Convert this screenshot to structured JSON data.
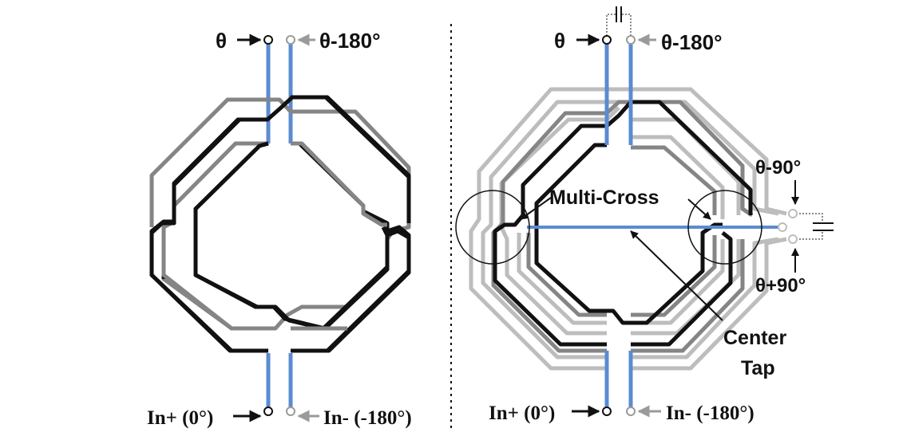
{
  "left": {
    "top_in_label": "θ",
    "top_out_label": "θ-180°",
    "bottom_in_label": "In+ (0°)",
    "bottom_out_label": "In- (-180°)"
  },
  "right": {
    "top_in_label": "θ",
    "top_out_label": "θ-180°",
    "side_top_label": "θ-90°",
    "side_bottom_label": "θ+90°",
    "bottom_in_label": "In+ (0°)",
    "bottom_out_label": "In- (-180°)",
    "multi_cross_label": "Multi-Cross",
    "center_tap_label_line1": "Center",
    "center_tap_label_line2": "Tap"
  },
  "colors": {
    "black_trace": "#111111",
    "dark_gray_trace": "#858585",
    "light_gray_trace": "#bdbdbd",
    "blue_feed": "#5b8bd0"
  }
}
